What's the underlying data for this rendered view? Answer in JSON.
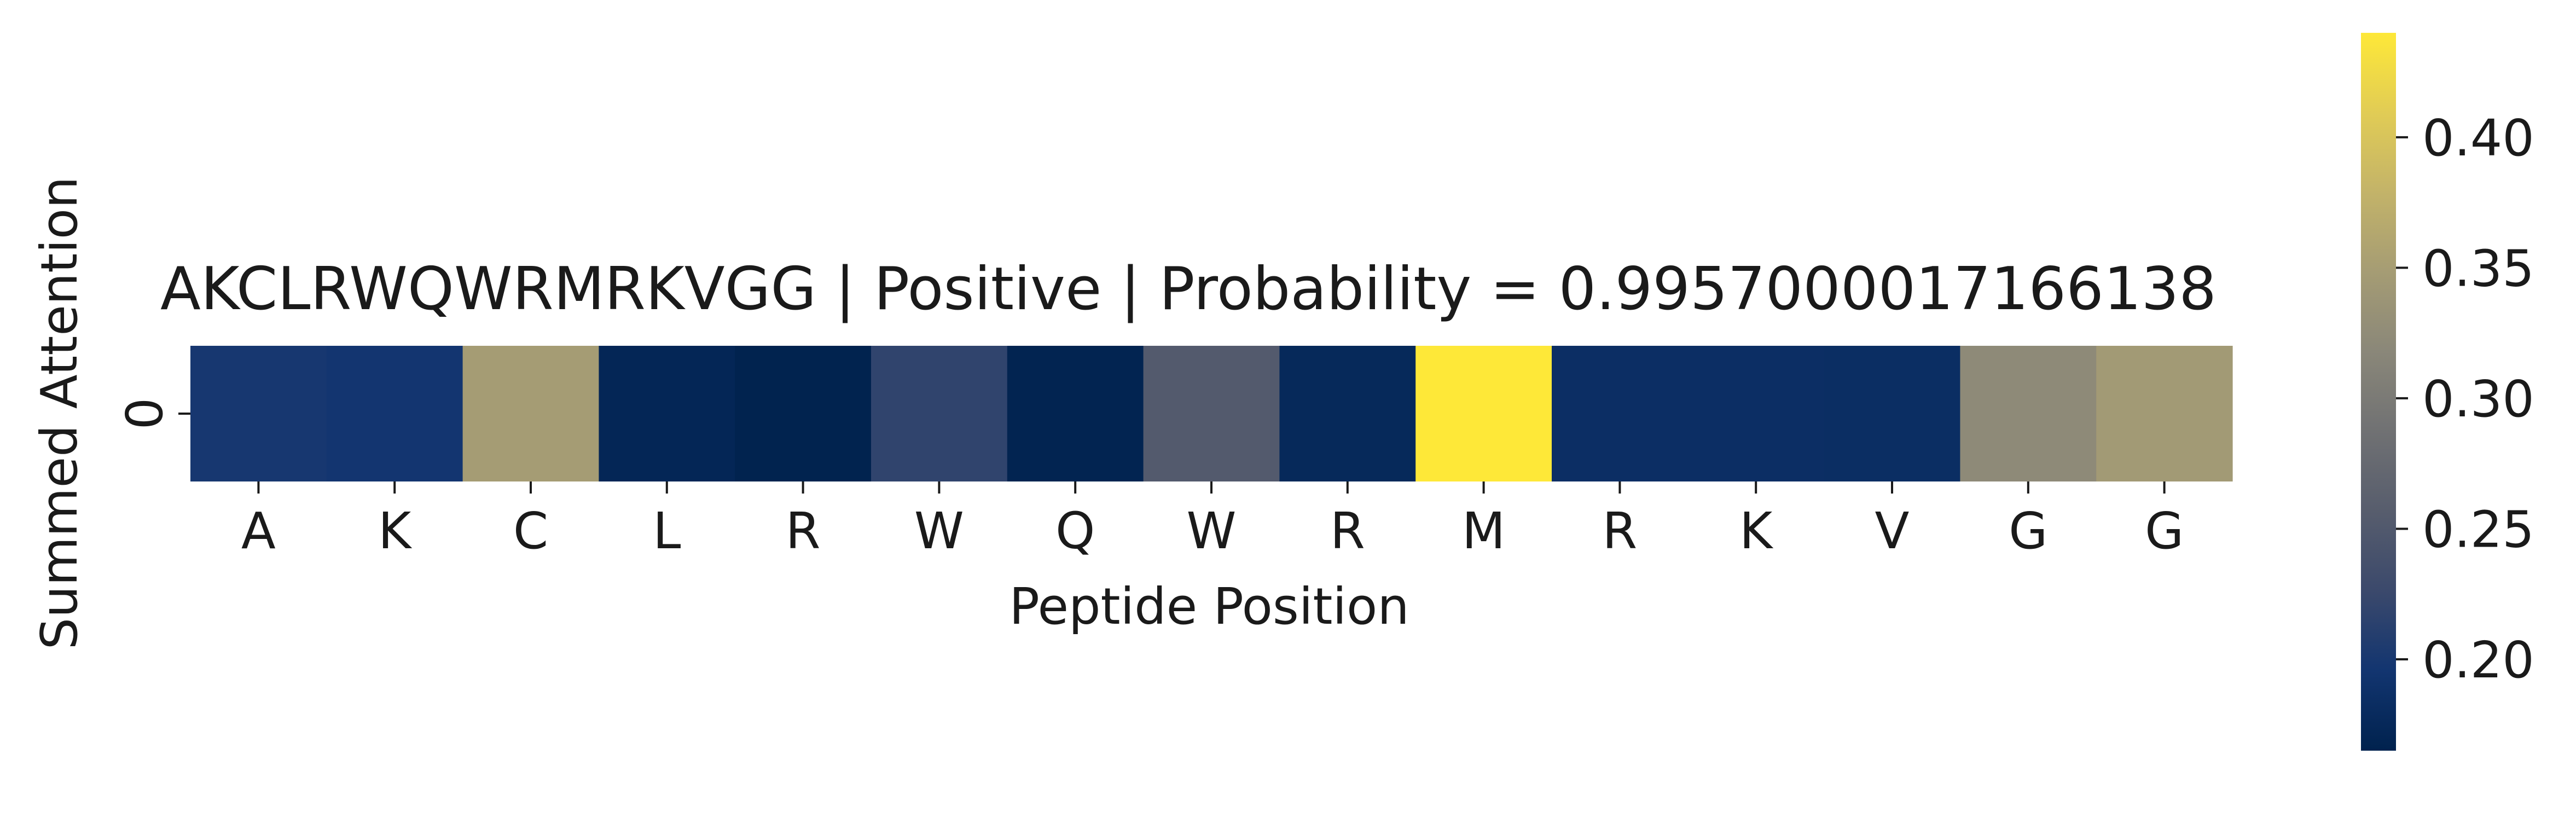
{
  "chart_data": {
    "type": "heatmap",
    "title": "AKCLRWQWRMRKVGG | Positive | Probability = 0.9957000017166138",
    "xlabel": "Peptide Position",
    "ylabel": "Summed Attention",
    "x_categories": [
      "A",
      "K",
      "C",
      "L",
      "R",
      "W",
      "Q",
      "W",
      "R",
      "M",
      "R",
      "K",
      "V",
      "G",
      "G"
    ],
    "y_categories": [
      "0"
    ],
    "values": [
      [
        0.199,
        0.196,
        0.348,
        0.172,
        0.166,
        0.218,
        0.168,
        0.252,
        0.176,
        0.44,
        0.185,
        0.185,
        0.184,
        0.322,
        0.345
      ]
    ],
    "colormap": "cividis",
    "colorbar": {
      "range": [
        0.165,
        0.44
      ],
      "ticks": [
        0.2,
        0.25,
        0.3,
        0.35,
        0.4
      ],
      "tick_labels": [
        "0.20",
        "0.25",
        "0.30",
        "0.35",
        "0.40"
      ]
    },
    "colorbar_colors": [
      "#00224e",
      "#123570",
      "#3b496c",
      "#575d6d",
      "#707173",
      "#8a8779",
      "#a59c74",
      "#c3b369",
      "#e1cc55",
      "#fee838"
    ]
  }
}
